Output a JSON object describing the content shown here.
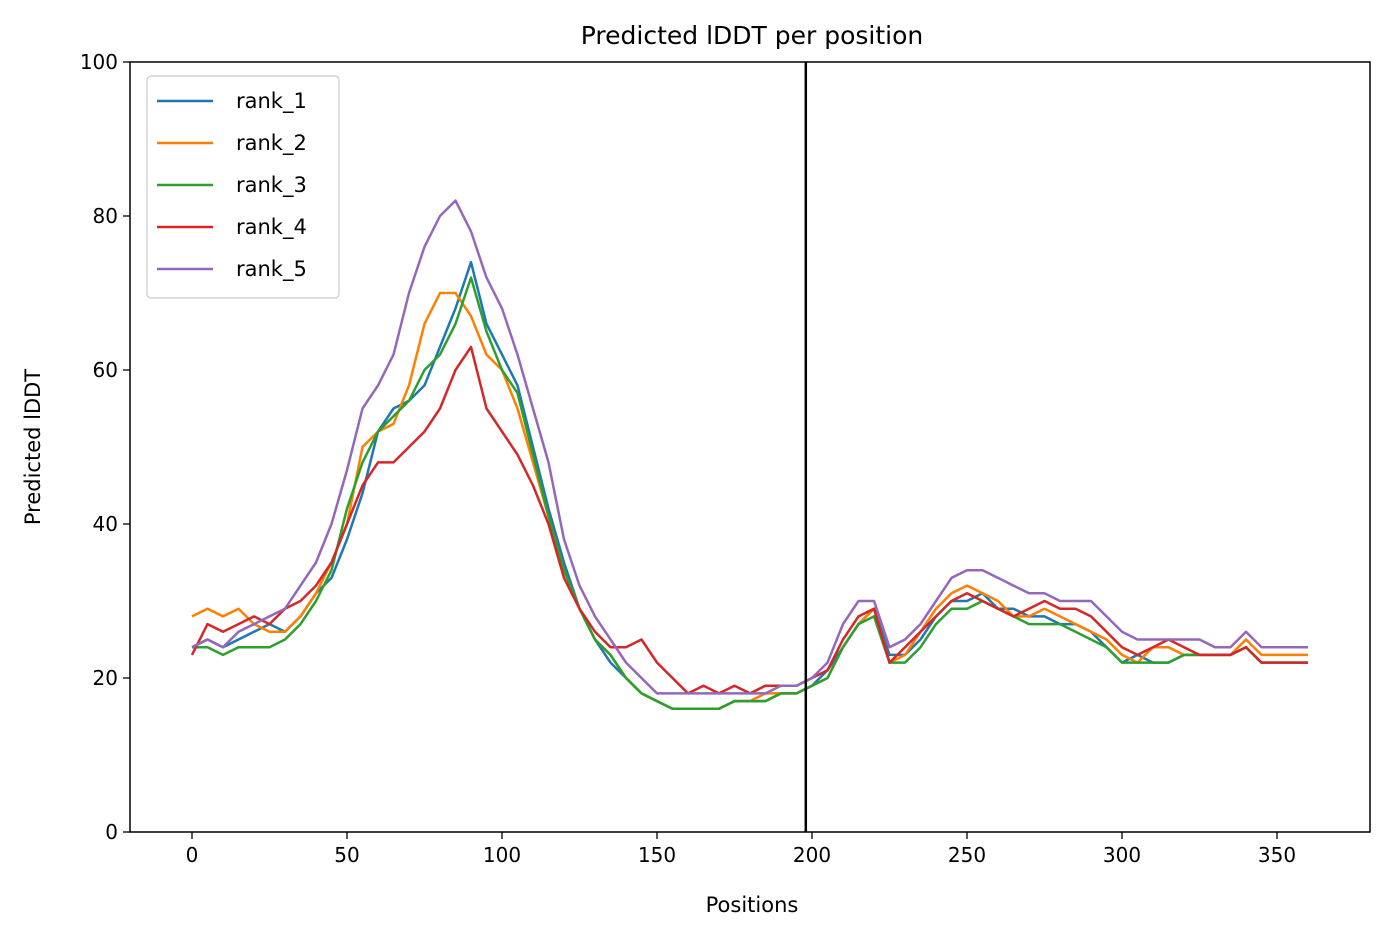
{
  "chart_data": {
    "type": "line",
    "title": "Predicted lDDT per position",
    "xlabel": "Positions",
    "ylabel": "Predicted lDDT",
    "xlim": [
      -20,
      380
    ],
    "ylim": [
      0,
      100
    ],
    "xticks": [
      0,
      50,
      100,
      150,
      200,
      250,
      300,
      350
    ],
    "yticks": [
      0,
      20,
      40,
      60,
      80,
      100
    ],
    "grid": false,
    "legend_position": "top-left",
    "vline": 198,
    "x_step": 5,
    "series": [
      {
        "name": "rank_1",
        "color": "#1f77b4",
        "values": [
          24,
          25,
          24,
          25,
          26,
          27,
          26,
          28,
          31,
          33,
          38,
          44,
          52,
          55,
          56,
          58,
          63,
          68,
          74,
          66,
          62,
          58,
          50,
          42,
          35,
          29,
          25,
          22,
          20,
          18,
          17,
          16,
          16,
          16,
          16,
          17,
          17,
          17,
          18,
          18,
          19,
          21,
          24,
          27,
          29,
          23,
          23,
          25,
          28,
          30,
          30,
          31,
          29,
          29,
          28,
          28,
          27,
          27,
          26,
          24,
          22,
          23,
          22,
          22,
          23,
          23,
          23,
          23,
          24,
          22,
          22,
          22,
          22
        ]
      },
      {
        "name": "rank_2",
        "color": "#ff7f00",
        "values": [
          28,
          29,
          28,
          29,
          27,
          26,
          26,
          28,
          31,
          35,
          40,
          50,
          52,
          53,
          58,
          66,
          70,
          70,
          67,
          62,
          60,
          55,
          48,
          41,
          34,
          29,
          25,
          23,
          20,
          18,
          17,
          16,
          16,
          16,
          16,
          17,
          17,
          18,
          18,
          18,
          19,
          20,
          24,
          27,
          29,
          22,
          23,
          26,
          29,
          31,
          32,
          31,
          30,
          28,
          28,
          29,
          28,
          27,
          26,
          25,
          23,
          22,
          24,
          24,
          23,
          23,
          23,
          23,
          25,
          23,
          23,
          23,
          23
        ]
      },
      {
        "name": "rank_3",
        "color": "#2ca02c",
        "values": [
          24,
          24,
          23,
          24,
          24,
          24,
          25,
          27,
          30,
          34,
          42,
          48,
          52,
          54,
          56,
          60,
          62,
          66,
          72,
          65,
          60,
          57,
          49,
          41,
          34,
          29,
          25,
          23,
          20,
          18,
          17,
          16,
          16,
          16,
          16,
          17,
          17,
          17,
          18,
          18,
          19,
          20,
          24,
          27,
          28,
          22,
          22,
          24,
          27,
          29,
          29,
          30,
          29,
          28,
          27,
          27,
          27,
          26,
          25,
          24,
          22,
          22,
          22,
          22,
          23,
          23,
          23,
          23,
          24,
          22,
          22,
          22,
          22
        ]
      },
      {
        "name": "rank_4",
        "color": "#d62728",
        "values": [
          23,
          27,
          26,
          27,
          28,
          27,
          29,
          30,
          32,
          35,
          40,
          45,
          48,
          48,
          50,
          52,
          55,
          60,
          63,
          55,
          52,
          49,
          45,
          40,
          33,
          29,
          26,
          24,
          24,
          25,
          22,
          20,
          18,
          19,
          18,
          19,
          18,
          19,
          19,
          19,
          20,
          21,
          25,
          28,
          29,
          22,
          24,
          26,
          28,
          30,
          31,
          30,
          29,
          28,
          29,
          30,
          29,
          29,
          28,
          26,
          24,
          23,
          24,
          25,
          24,
          23,
          23,
          23,
          24,
          22,
          22,
          22,
          22
        ]
      },
      {
        "name": "rank_5",
        "color": "#9467bd",
        "values": [
          24,
          25,
          24,
          26,
          27,
          28,
          29,
          32,
          35,
          40,
          47,
          55,
          58,
          62,
          70,
          76,
          80,
          82,
          78,
          72,
          68,
          62,
          55,
          48,
          38,
          32,
          28,
          25,
          22,
          20,
          18,
          18,
          18,
          18,
          18,
          18,
          18,
          18,
          19,
          19,
          20,
          22,
          27,
          30,
          30,
          24,
          25,
          27,
          30,
          33,
          34,
          34,
          33,
          32,
          31,
          31,
          30,
          30,
          30,
          28,
          26,
          25,
          25,
          25,
          25,
          25,
          24,
          24,
          26,
          24,
          24,
          24,
          24
        ]
      }
    ]
  }
}
